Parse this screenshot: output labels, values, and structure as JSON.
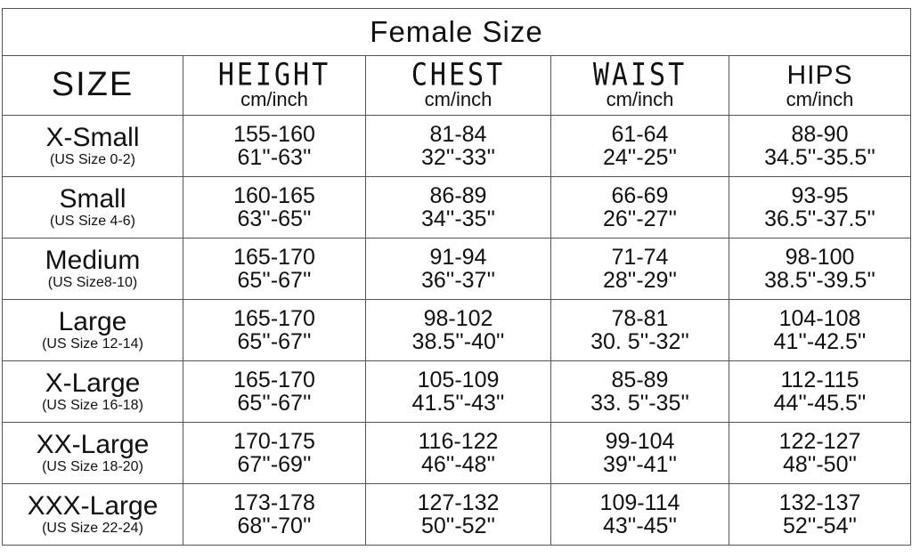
{
  "title": "Female Size",
  "headers": [
    {
      "name": "SIZE",
      "unit": ""
    },
    {
      "name": "HEIGHT",
      "unit": "cm/inch"
    },
    {
      "name": "CHEST",
      "unit": "cm/inch"
    },
    {
      "name": "WAIST",
      "unit": "cm/inch"
    },
    {
      "name": "HIPS",
      "unit": "cm/inch"
    }
  ],
  "rows": [
    {
      "size": "X-Small",
      "us": "(US Size 0-2)",
      "height": [
        "155-160",
        "61''-63''"
      ],
      "chest": [
        "81-84",
        "32''-33''"
      ],
      "waist": [
        "61-64",
        "24''-25''"
      ],
      "hips": [
        "88-90",
        "34.5''-35.5''"
      ]
    },
    {
      "size": "Small",
      "us": "(US Size 4-6)",
      "height": [
        "160-165",
        "63''-65''"
      ],
      "chest": [
        "86-89",
        "34''-35''"
      ],
      "waist": [
        "66-69",
        "26''-27''"
      ],
      "hips": [
        "93-95",
        "36.5''-37.5''"
      ]
    },
    {
      "size": "Medium",
      "us": "(US Size8-10)",
      "height": [
        "165-170",
        "65''-67''"
      ],
      "chest": [
        "91-94",
        "36''-37''"
      ],
      "waist": [
        "71-74",
        "28''-29''"
      ],
      "hips": [
        "98-100",
        "38.5''-39.5''"
      ]
    },
    {
      "size": "Large",
      "us": "(US Size 12-14)",
      "height": [
        "165-170",
        "65''-67''"
      ],
      "chest": [
        "98-102",
        "38.5''-40''"
      ],
      "waist": [
        "78-81",
        "30. 5''-32''"
      ],
      "hips": [
        "104-108",
        "41''-42.5''"
      ]
    },
    {
      "size": "X-Large",
      "us": "(US Size 16-18)",
      "height": [
        "165-170",
        "65''-67''"
      ],
      "chest": [
        "105-109",
        "41.5''-43''"
      ],
      "waist": [
        "85-89",
        "33. 5''-35''"
      ],
      "hips": [
        "112-115",
        "44''-45.5''"
      ]
    },
    {
      "size": "XX-Large",
      "us": "(US Size 18-20)",
      "height": [
        "170-175",
        "67''-69''"
      ],
      "chest": [
        "116-122",
        "46''-48''"
      ],
      "waist": [
        "99-104",
        "39''-41''"
      ],
      "hips": [
        "122-127",
        "48''-50''"
      ]
    },
    {
      "size": "XXX-Large",
      "us": "(US Size 22-24)",
      "height": [
        "173-178",
        "68''-70''"
      ],
      "chest": [
        "127-132",
        "50''-52''"
      ],
      "waist": [
        "109-114",
        "43''-45''"
      ],
      "hips": [
        "132-137",
        "52''-54''"
      ]
    }
  ]
}
